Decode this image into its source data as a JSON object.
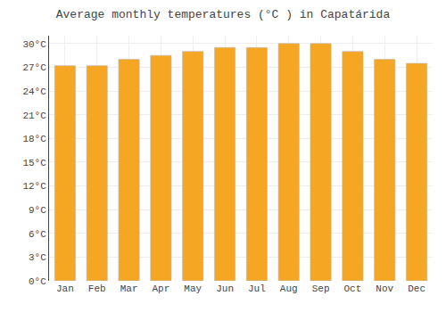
{
  "chart_data": {
    "type": "bar",
    "title": "Average monthly temperatures (°C ) in Capatárida",
    "categories": [
      "Jan",
      "Feb",
      "Mar",
      "Apr",
      "May",
      "Jun",
      "Jul",
      "Aug",
      "Sep",
      "Oct",
      "Nov",
      "Dec"
    ],
    "values": [
      27.2,
      27.2,
      28.0,
      28.5,
      29.0,
      29.5,
      29.5,
      30.0,
      30.0,
      29.0,
      28.0,
      27.5
    ],
    "color": "#F5A623",
    "ylim": [
      0,
      31
    ],
    "yticks": [
      {
        "value": 0,
        "label": "0°C"
      },
      {
        "value": 3,
        "label": "3°C"
      },
      {
        "value": 6,
        "label": "6°C"
      },
      {
        "value": 9,
        "label": "9°C"
      },
      {
        "value": 12,
        "label": "12°C"
      },
      {
        "value": 15,
        "label": "15°C"
      },
      {
        "value": 18,
        "label": "18°C"
      },
      {
        "value": 21,
        "label": "21°C"
      },
      {
        "value": 24,
        "label": "24°C"
      },
      {
        "value": 27,
        "label": "27°C"
      },
      {
        "value": 30,
        "label": "30°C"
      }
    ],
    "grid": true
  }
}
